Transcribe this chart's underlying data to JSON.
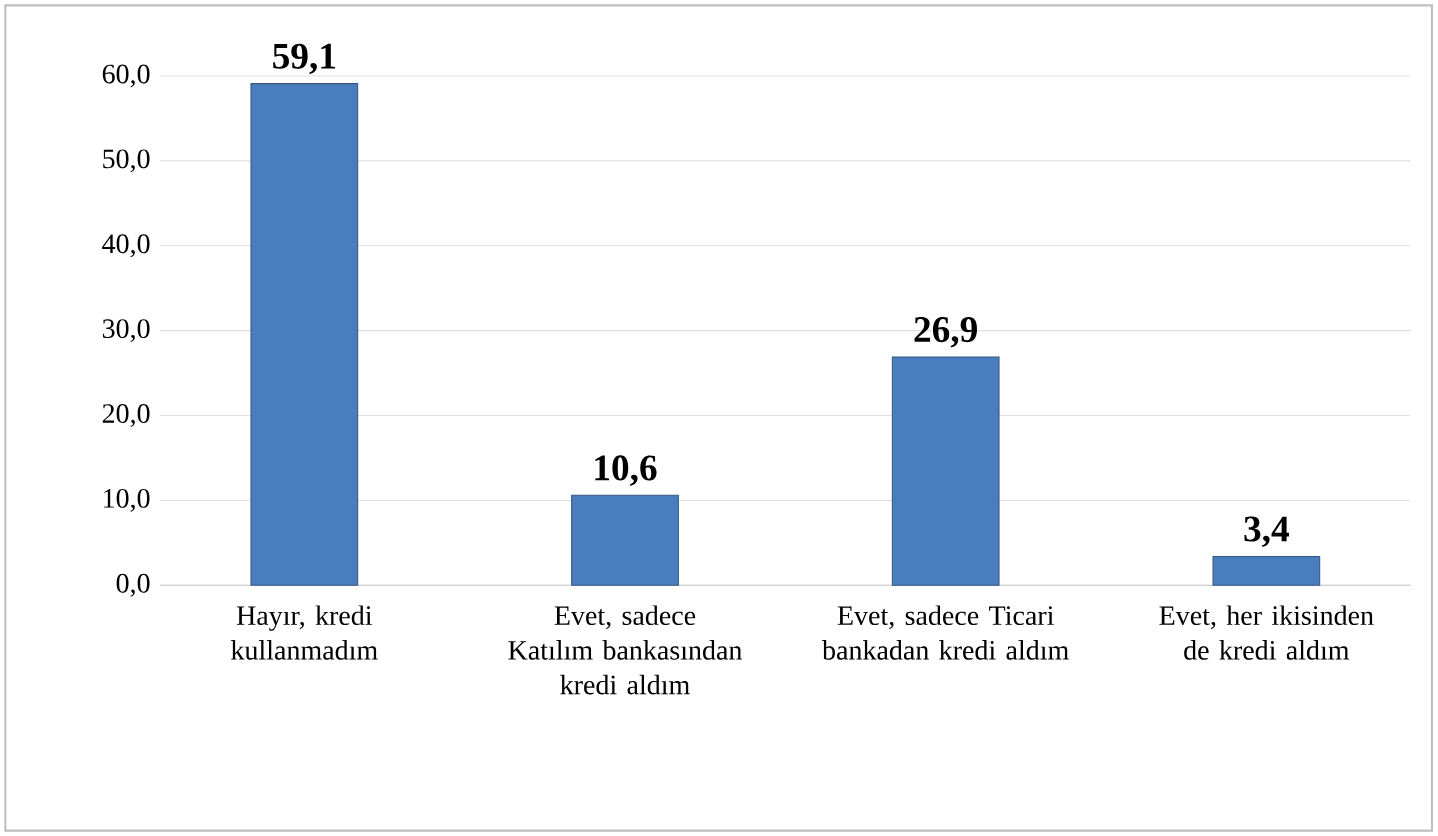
{
  "chart_data": {
    "type": "bar",
    "categories": [
      "Hayır, kredi kullanmadım",
      "Evet, sadece Katılım bankasından kredi aldım",
      "Evet, sadece Ticari bankadan kredi aldım",
      "Evet, her ikisinden de kredi aldım"
    ],
    "values": [
      59.1,
      10.6,
      26.9,
      3.4
    ],
    "value_labels": [
      "59,1",
      "10,6",
      "26,9",
      "3,4"
    ],
    "color": "#4a7dbd",
    "ylim": [
      0,
      60
    ],
    "yticks": [
      {
        "value": 0,
        "label": "0,0"
      },
      {
        "value": 10,
        "label": "10,0"
      },
      {
        "value": 20,
        "label": "20,0"
      },
      {
        "value": 30,
        "label": "30,0"
      },
      {
        "value": 40,
        "label": "40,0"
      },
      {
        "value": 50,
        "label": "50,0"
      },
      {
        "value": 60,
        "label": "60,0"
      }
    ],
    "grid": "y"
  }
}
